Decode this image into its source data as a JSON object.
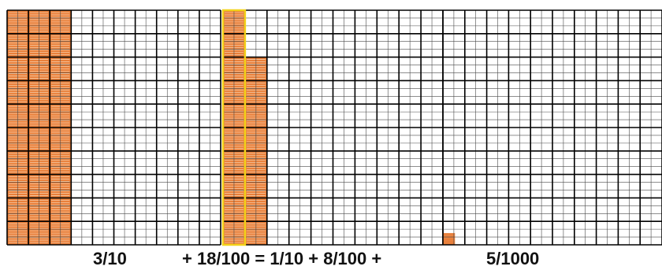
{
  "colors": {
    "fill": "#e9803b",
    "fill_line": "#f6c9a4",
    "grid_thin": "#4a4a4a",
    "grid_thick": "#000000",
    "highlight": "#f2d21a"
  },
  "grids": [
    {
      "name": "tenths-grid",
      "columns": 10,
      "rows": 10,
      "shaded_columns": 3,
      "shaded_squares": 0,
      "shaded_thousandths": 0,
      "highlight_column": null,
      "label": "3/10"
    },
    {
      "name": "hundredths-grid",
      "columns": 10,
      "rows": 10,
      "shaded_columns": 1,
      "shaded_squares": 8,
      "shaded_thousandths": 0,
      "highlight_column": 1,
      "label": "+  18/100 = 1/10 + 8/100 +"
    },
    {
      "name": "thousandths-grid",
      "columns": 10,
      "rows": 10,
      "shaded_columns": 0,
      "shaded_squares": 0,
      "shaded_thousandths": 5,
      "highlight_column": null,
      "label": "5/1000"
    }
  ]
}
